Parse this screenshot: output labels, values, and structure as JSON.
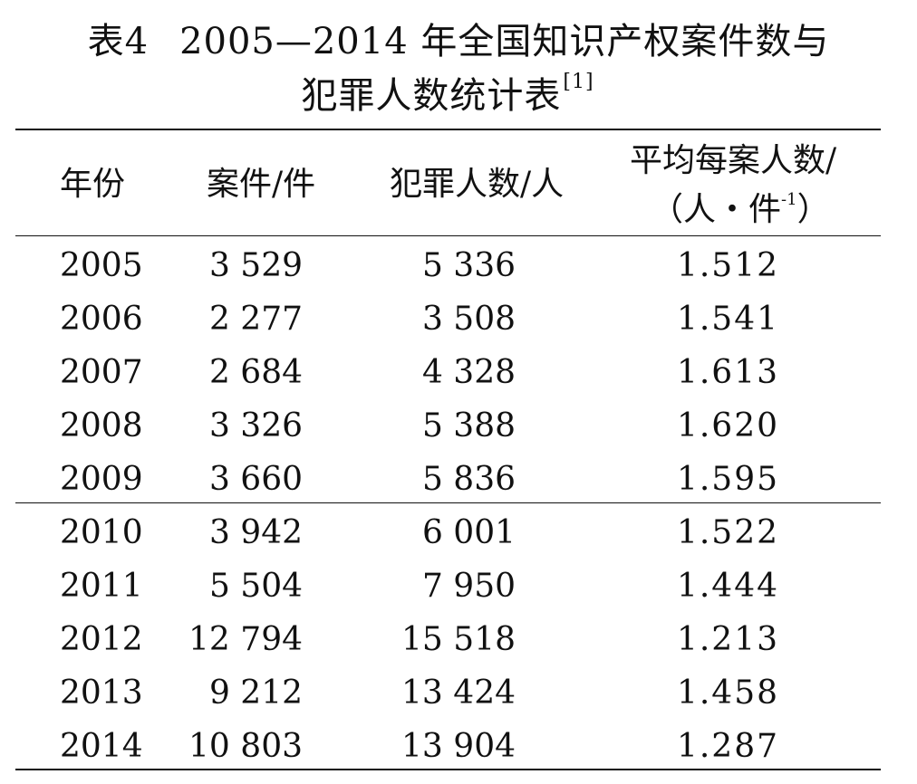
{
  "title": {
    "prefix": "表4",
    "line1": "2005—2014 年全国知识产权案件数与",
    "line2": "犯罪人数统计表",
    "citation": "[1]"
  },
  "table": {
    "headers": {
      "year": "年份",
      "cases": "案件/件",
      "criminals": "犯罪人数/人",
      "avg_line1": "平均每案人数/",
      "avg_line2_open": "（人・件",
      "avg_line2_sup": "-1",
      "avg_line2_close": "）"
    },
    "rows": [
      {
        "year": "2005",
        "cases": "3 529",
        "criminals": "5 336",
        "avg": "1.512"
      },
      {
        "year": "2006",
        "cases": "2 277",
        "criminals": "3 508",
        "avg": "1.541"
      },
      {
        "year": "2007",
        "cases": "2 684",
        "criminals": "4 328",
        "avg": "1.613"
      },
      {
        "year": "2008",
        "cases": "3 326",
        "criminals": "5 388",
        "avg": "1.620"
      },
      {
        "year": "2009",
        "cases": "3 660",
        "criminals": "5 836",
        "avg": "1.595"
      },
      {
        "year": "2010",
        "cases": "3 942",
        "criminals": "6 001",
        "avg": "1.522"
      },
      {
        "year": "2011",
        "cases": "5 504",
        "criminals": "7 950",
        "avg": "1.444"
      },
      {
        "year": "2012",
        "cases": "12 794",
        "criminals": "15 518",
        "avg": "1.213"
      },
      {
        "year": "2013",
        "cases": "9 212",
        "criminals": "13 424",
        "avg": "1.458"
      },
      {
        "year": "2014",
        "cases": "10 803",
        "criminals": "13 904",
        "avg": "1.287"
      }
    ]
  }
}
